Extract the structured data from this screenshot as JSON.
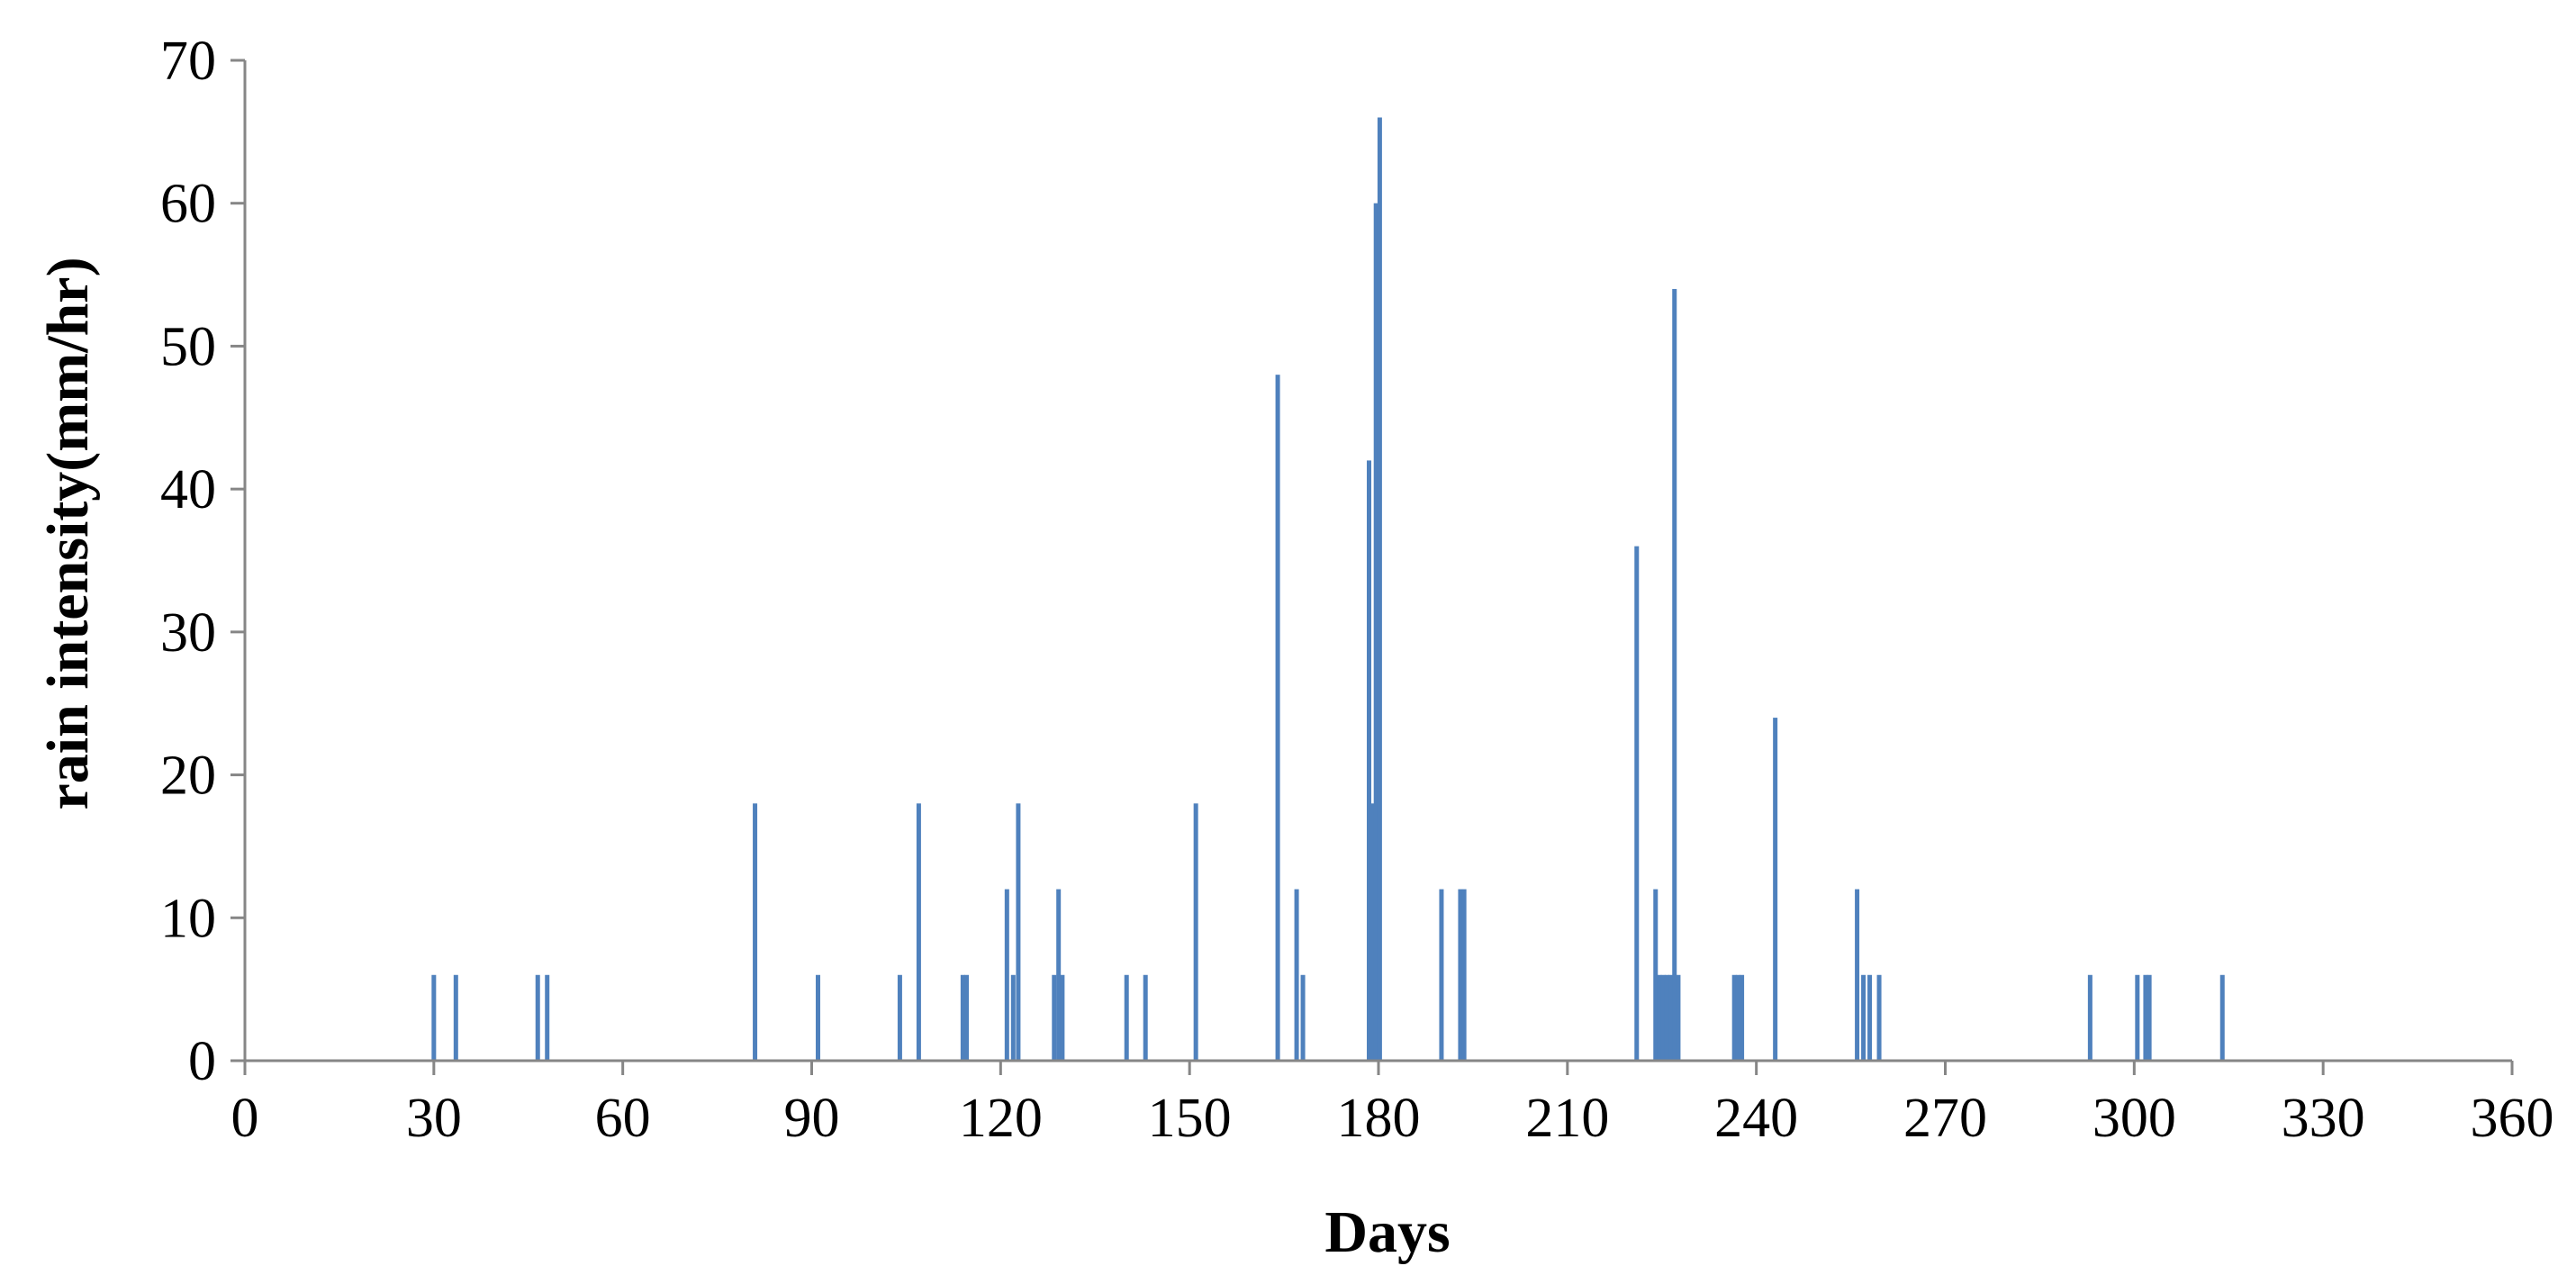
{
  "chart_data": {
    "type": "bar",
    "title": "",
    "xlabel": "Days",
    "ylabel": "rain intensity(mm/hr)",
    "xlim": [
      0,
      360
    ],
    "ylim": [
      0,
      70
    ],
    "x_ticks": [
      "0",
      "30",
      "60",
      "90",
      "120",
      "150",
      "180",
      "210",
      "240",
      "270",
      "300",
      "330",
      "360"
    ],
    "y_ticks": [
      "0",
      "10",
      "20",
      "30",
      "40",
      "50",
      "60",
      "70"
    ],
    "grid": false,
    "bar_color": "#4f81bd",
    "points": [
      {
        "x": 30,
        "y": 6
      },
      {
        "x": 33.5,
        "y": 6
      },
      {
        "x": 46.5,
        "y": 6
      },
      {
        "x": 48,
        "y": 6
      },
      {
        "x": 81,
        "y": 18
      },
      {
        "x": 91,
        "y": 6
      },
      {
        "x": 104,
        "y": 6
      },
      {
        "x": 107,
        "y": 18
      },
      {
        "x": 114,
        "y": 6
      },
      {
        "x": 114.6,
        "y": 6
      },
      {
        "x": 121,
        "y": 12
      },
      {
        "x": 122,
        "y": 6
      },
      {
        "x": 122.8,
        "y": 18
      },
      {
        "x": 128.5,
        "y": 6
      },
      {
        "x": 129.2,
        "y": 12
      },
      {
        "x": 129.8,
        "y": 6
      },
      {
        "x": 140,
        "y": 6
      },
      {
        "x": 143,
        "y": 6
      },
      {
        "x": 151,
        "y": 18
      },
      {
        "x": 164,
        "y": 48
      },
      {
        "x": 167,
        "y": 12
      },
      {
        "x": 168,
        "y": 6
      },
      {
        "x": 178.5,
        "y": 42
      },
      {
        "x": 179,
        "y": 18
      },
      {
        "x": 179.6,
        "y": 60
      },
      {
        "x": 180.2,
        "y": 66
      },
      {
        "x": 190,
        "y": 12
      },
      {
        "x": 193,
        "y": 12
      },
      {
        "x": 193.6,
        "y": 12
      },
      {
        "x": 221,
        "y": 36
      },
      {
        "x": 224,
        "y": 12
      },
      {
        "x": 224.6,
        "y": 6
      },
      {
        "x": 225.2,
        "y": 6
      },
      {
        "x": 225.8,
        "y": 6
      },
      {
        "x": 226.4,
        "y": 6
      },
      {
        "x": 227,
        "y": 54
      },
      {
        "x": 227.6,
        "y": 6
      },
      {
        "x": 236.5,
        "y": 6
      },
      {
        "x": 237.1,
        "y": 6
      },
      {
        "x": 237.7,
        "y": 6
      },
      {
        "x": 243,
        "y": 24
      },
      {
        "x": 256,
        "y": 12
      },
      {
        "x": 257,
        "y": 6
      },
      {
        "x": 258,
        "y": 6
      },
      {
        "x": 259.5,
        "y": 6
      },
      {
        "x": 293,
        "y": 6
      },
      {
        "x": 300.5,
        "y": 6
      },
      {
        "x": 301.8,
        "y": 6
      },
      {
        "x": 302.4,
        "y": 6
      },
      {
        "x": 314,
        "y": 6
      }
    ]
  }
}
